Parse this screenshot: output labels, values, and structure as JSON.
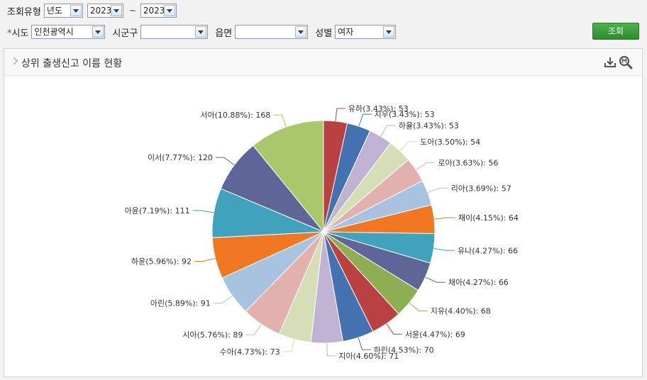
{
  "filters": {
    "query_type_label": "조회유형",
    "query_type_value": "년도",
    "year_from": "2023",
    "tilde": "~",
    "year_to": "2023",
    "required_mark": "*",
    "sido_label": "시도",
    "sido_value": "인천광역시",
    "sigungu_label": "시군구",
    "sigungu_value": "",
    "eupmyeon_label": "읍면",
    "eupmyeon_value": "",
    "gender_label": "성별",
    "gender_value": "여자",
    "search_button": "조회"
  },
  "panel": {
    "title": "상위 출생신고 이름 현황"
  },
  "icons": {
    "download": "download-icon",
    "zoom": "zoom-icon",
    "collapse": "chevron-right-icon"
  },
  "chart_data": {
    "type": "pie",
    "title": "상위 출생신고 이름 현황",
    "labels": [
      "유하(3.43%): 53",
      "지우(3.43%): 53",
      "하율(3.43%): 53",
      "도아(3.50%): 54",
      "로아(3.63%): 56",
      "리아(3.69%): 57",
      "채이(4.15%): 64",
      "유나(4.27%): 66",
      "채아(4.27%): 66",
      "지유(4.40%): 68",
      "서윤(4.47%): 69",
      "하린(4.53%): 70",
      "지아(4.60%): 71",
      "수아(4.73%): 73",
      "시아(5.76%): 89",
      "아린(5.89%): 91",
      "하윤(5.96%): 92",
      "아윤(7.19%): 111",
      "이서(7.77%): 120",
      "서아(10.88%): 168"
    ],
    "names": [
      "유하",
      "지우",
      "하율",
      "도아",
      "로아",
      "리아",
      "채이",
      "유나",
      "채아",
      "지유",
      "서윤",
      "하린",
      "지아",
      "수아",
      "시아",
      "아린",
      "하윤",
      "아윤",
      "이서",
      "서아"
    ],
    "values": [
      53,
      53,
      53,
      54,
      56,
      57,
      64,
      66,
      66,
      68,
      69,
      70,
      71,
      73,
      89,
      91,
      92,
      111,
      120,
      168
    ],
    "percents": [
      3.43,
      3.43,
      3.43,
      3.5,
      3.63,
      3.69,
      4.15,
      4.27,
      4.27,
      4.4,
      4.47,
      4.53,
      4.6,
      4.73,
      5.76,
      5.89,
      5.96,
      7.19,
      7.77,
      10.88
    ],
    "colors": [
      "#b94141",
      "#4472b1",
      "#bfb2d3",
      "#d6deb8",
      "#e2b0ad",
      "#a8c3df",
      "#f07823",
      "#41a2bd",
      "#5d6697",
      "#8dae52",
      "#b94141",
      "#4472b1",
      "#bfb2d3",
      "#d6deb8",
      "#e2b0ad",
      "#a8c3df",
      "#f07823",
      "#41a2bd",
      "#5d6697",
      "#a9c76b"
    ],
    "start_angle": "top",
    "direction": "clockwise",
    "legend": "none"
  }
}
